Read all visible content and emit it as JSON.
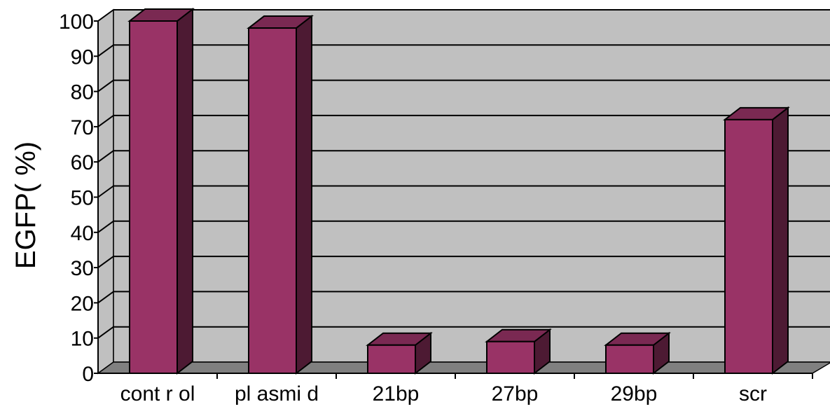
{
  "chart_data": {
    "type": "bar",
    "style": "3d-column",
    "categories": [
      "cont r ol",
      "pl asmi d",
      "21bp",
      "27bp",
      "29bp",
      "scr"
    ],
    "values": [
      100,
      98,
      8,
      9,
      8,
      72
    ],
    "ylabel": "EGFP( %)",
    "xlabel": "",
    "ylim": [
      0,
      100
    ],
    "yticks": [
      "0",
      "10",
      "20",
      "30",
      "40",
      "50",
      "60",
      "70",
      "80",
      "90",
      "100"
    ],
    "grid": true,
    "legend": "none",
    "colors": {
      "bar_front": "#993366",
      "bar_top": "#7a2952",
      "bar_side": "#4d1a33",
      "wall": "#c0c0c0",
      "floor": "#808080",
      "gridline": "#000000"
    }
  }
}
